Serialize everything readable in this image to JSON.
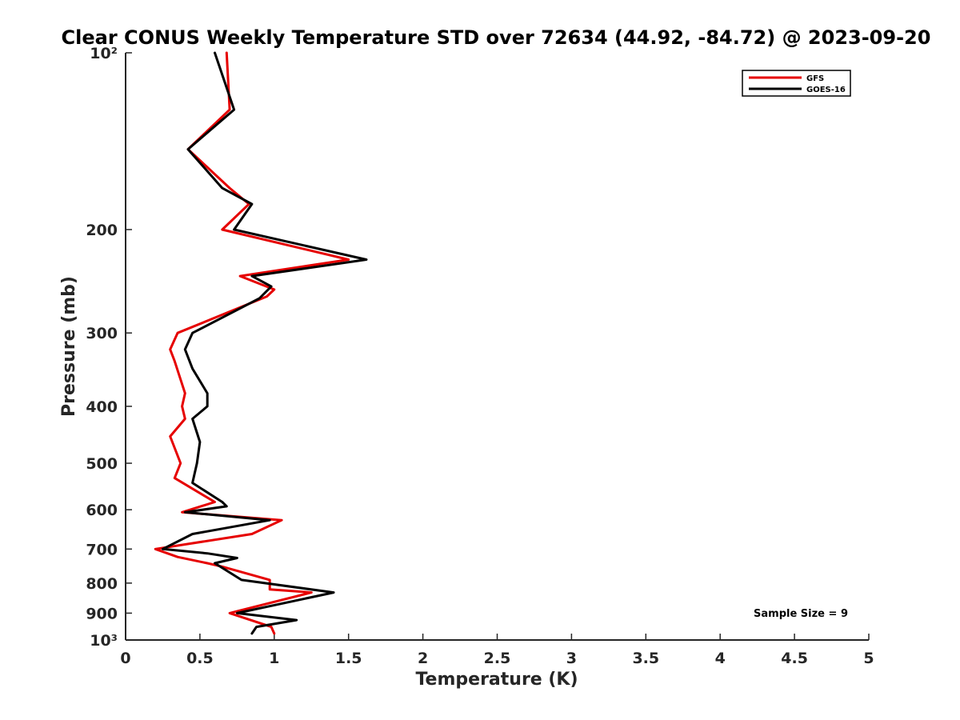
{
  "chart_data": {
    "type": "line",
    "title": "Clear CONUS Weekly Temperature STD over 72634 (44.92, -84.72) @ 2023-09-20",
    "xlabel": "Temperature (K)",
    "ylabel": "Pressure (mb)",
    "xlim": [
      0,
      5
    ],
    "ylim": [
      100,
      1000
    ],
    "yscale": "log",
    "y_reversed": true,
    "grid": false,
    "legend_position": "top-right",
    "x_ticks": [
      0,
      0.5,
      1,
      1.5,
      2,
      2.5,
      3,
      3.5,
      4,
      4.5,
      5
    ],
    "x_tick_labels": [
      "0",
      "0.5",
      "1",
      "1.5",
      "2",
      "2.5",
      "3",
      "3.5",
      "4",
      "4.5",
      "5"
    ],
    "y_ticks": [
      100,
      200,
      300,
      400,
      500,
      600,
      700,
      800,
      900,
      1000
    ],
    "y_tick_labels": [
      "10²",
      "200",
      "300",
      "400",
      "500",
      "600",
      "700",
      "800",
      "900",
      "10³"
    ],
    "series": [
      {
        "name": "GFS",
        "color": "#e60000",
        "points": [
          [
            0.68,
            100
          ],
          [
            0.7,
            125
          ],
          [
            0.42,
            146
          ],
          [
            0.7,
            170
          ],
          [
            0.83,
            181
          ],
          [
            0.65,
            200
          ],
          [
            1.5,
            225
          ],
          [
            0.77,
            240
          ],
          [
            1.0,
            253
          ],
          [
            0.95,
            260
          ],
          [
            0.35,
            300
          ],
          [
            0.3,
            320
          ],
          [
            0.33,
            335
          ],
          [
            0.4,
            380
          ],
          [
            0.38,
            400
          ],
          [
            0.4,
            420
          ],
          [
            0.3,
            450
          ],
          [
            0.37,
            500
          ],
          [
            0.33,
            530
          ],
          [
            0.6,
            582
          ],
          [
            0.38,
            606
          ],
          [
            1.05,
            625
          ],
          [
            0.85,
            660
          ],
          [
            0.2,
            700
          ],
          [
            0.35,
            722
          ],
          [
            0.55,
            740
          ],
          [
            0.65,
            750
          ],
          [
            0.97,
            790
          ],
          [
            0.97,
            820
          ],
          [
            1.25,
            830
          ],
          [
            0.7,
            900
          ],
          [
            0.98,
            950
          ],
          [
            1.0,
            975
          ]
        ]
      },
      {
        "name": "GOES-16",
        "color": "#000000",
        "points": [
          [
            0.6,
            100
          ],
          [
            0.73,
            125
          ],
          [
            0.42,
            146
          ],
          [
            0.65,
            170
          ],
          [
            0.85,
            181
          ],
          [
            0.73,
            200
          ],
          [
            1.62,
            225
          ],
          [
            0.85,
            240
          ],
          [
            0.98,
            250
          ],
          [
            0.9,
            262
          ],
          [
            0.45,
            300
          ],
          [
            0.4,
            320
          ],
          [
            0.45,
            345
          ],
          [
            0.55,
            380
          ],
          [
            0.55,
            400
          ],
          [
            0.45,
            420
          ],
          [
            0.5,
            460
          ],
          [
            0.48,
            500
          ],
          [
            0.45,
            540
          ],
          [
            0.65,
            582
          ],
          [
            0.68,
            592
          ],
          [
            0.4,
            606
          ],
          [
            0.97,
            625
          ],
          [
            0.45,
            660
          ],
          [
            0.25,
            700
          ],
          [
            0.55,
            712
          ],
          [
            0.75,
            725
          ],
          [
            0.6,
            740
          ],
          [
            0.78,
            790
          ],
          [
            1.4,
            830
          ],
          [
            0.75,
            900
          ],
          [
            1.15,
            925
          ],
          [
            0.88,
            950
          ],
          [
            0.85,
            975
          ]
        ]
      }
    ],
    "annotation": "Sample Size = 9"
  }
}
